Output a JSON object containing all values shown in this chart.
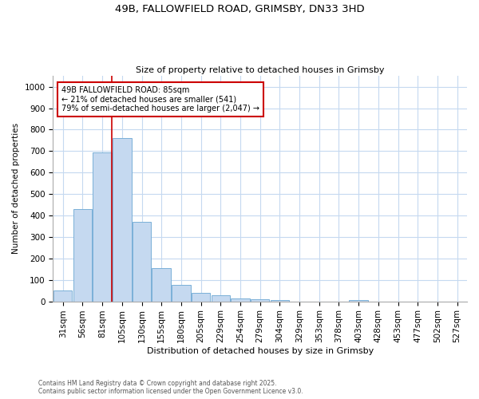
{
  "title1": "49B, FALLOWFIELD ROAD, GRIMSBY, DN33 3HD",
  "title2": "Size of property relative to detached houses in Grimsby",
  "xlabel": "Distribution of detached houses by size in Grimsby",
  "ylabel": "Number of detached properties",
  "bar_labels": [
    "31sqm",
    "56sqm",
    "81sqm",
    "105sqm",
    "130sqm",
    "155sqm",
    "180sqm",
    "205sqm",
    "229sqm",
    "254sqm",
    "279sqm",
    "304sqm",
    "329sqm",
    "353sqm",
    "378sqm",
    "403sqm",
    "428sqm",
    "453sqm",
    "477sqm",
    "502sqm",
    "527sqm"
  ],
  "bar_values": [
    50,
    430,
    695,
    760,
    370,
    155,
    75,
    38,
    30,
    15,
    10,
    5,
    0,
    0,
    0,
    5,
    0,
    0,
    0,
    0,
    0
  ],
  "bar_color": "#c5d9f0",
  "bar_edge_color": "#7ab0d8",
  "grid_color": "#c5d9f0",
  "background_color": "#ffffff",
  "vline_color": "#cc0000",
  "annotation_text": "49B FALLOWFIELD ROAD: 85sqm\n← 21% of detached houses are smaller (541)\n79% of semi-detached houses are larger (2,047) →",
  "annotation_box_color": "#cc0000",
  "ylim": [
    0,
    1050
  ],
  "yticks": [
    0,
    100,
    200,
    300,
    400,
    500,
    600,
    700,
    800,
    900,
    1000
  ],
  "footnote1": "Contains HM Land Registry data © Crown copyright and database right 2025.",
  "footnote2": "Contains public sector information licensed under the Open Government Licence v3.0."
}
